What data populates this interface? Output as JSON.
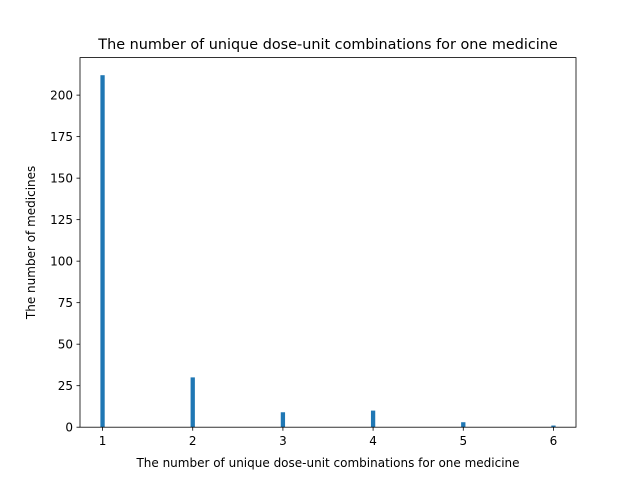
{
  "chart_data": {
    "type": "bar",
    "title": "The number of unique dose-unit combinations for one medicine",
    "xlabel": "The number of unique dose-unit combinations for one medicine",
    "ylabel": "The number of medicines",
    "x": [
      1,
      2,
      3,
      4,
      5,
      6
    ],
    "values": [
      212,
      30,
      9,
      10,
      3,
      1
    ],
    "xlim": [
      0.75,
      6.25
    ],
    "ylim": [
      0,
      222.6
    ],
    "xticks": [
      "1",
      "2",
      "3",
      "4",
      "5",
      "6"
    ],
    "yticks": [
      "0",
      "25",
      "50",
      "75",
      "100",
      "125",
      "150",
      "175",
      "200"
    ],
    "bar_color": "#1f77b4",
    "grid": false
  }
}
